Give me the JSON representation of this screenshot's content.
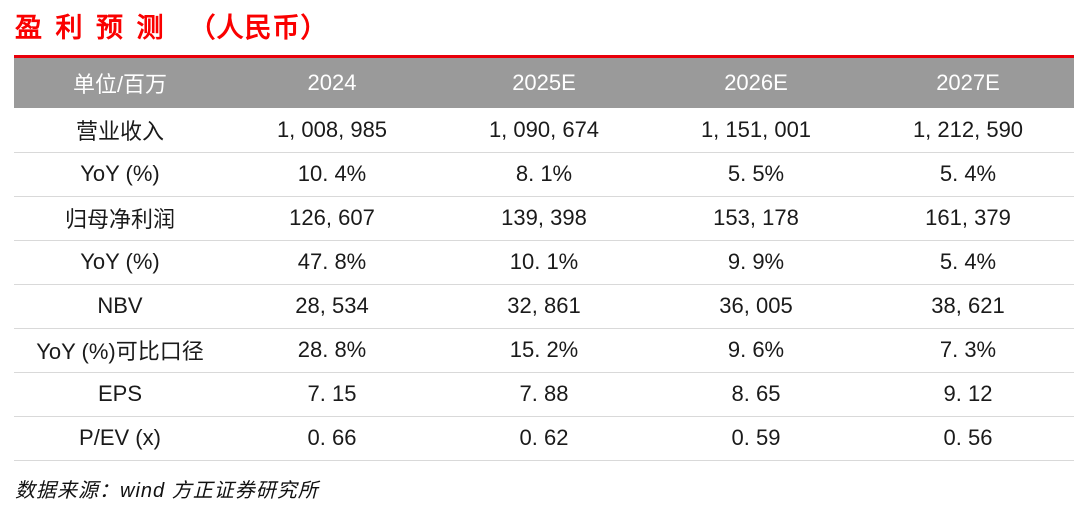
{
  "title": {
    "main": "盈 利 预 测",
    "unit": "（人民币）"
  },
  "table": {
    "header": {
      "label": "单位/百万",
      "columns": [
        "2024",
        "2025E",
        "2026E",
        "2027E"
      ]
    },
    "rows": [
      {
        "label": "营业收入",
        "values": [
          "1, 008, 985",
          "1, 090, 674",
          "1, 151, 001",
          "1, 212, 590"
        ]
      },
      {
        "label": "YoY (%)",
        "values": [
          "10. 4%",
          "8. 1%",
          "5. 5%",
          "5. 4%"
        ]
      },
      {
        "label": "归母净利润",
        "values": [
          "126, 607",
          "139, 398",
          "153, 178",
          "161, 379"
        ]
      },
      {
        "label": "YoY (%)",
        "values": [
          "47. 8%",
          "10. 1%",
          "9. 9%",
          "5. 4%"
        ]
      },
      {
        "label": "NBV",
        "values": [
          "28, 534",
          "32, 861",
          "36, 005",
          "38, 621"
        ]
      },
      {
        "label": "YoY (%)可比口径",
        "values": [
          "28. 8%",
          "15. 2%",
          "9. 6%",
          "7. 3%"
        ]
      },
      {
        "label": "EPS",
        "values": [
          "7. 15",
          "7. 88",
          "8. 65",
          "9. 12"
        ]
      },
      {
        "label": "P/EV (x)",
        "values": [
          "0. 66",
          "0. 62",
          "0. 59",
          "0. 56"
        ]
      }
    ]
  },
  "footer": {
    "source": "数据来源：wind 方正证券研究所"
  },
  "colors": {
    "accent_red": "#fa0000",
    "rule_red": "#e8000a",
    "header_bg": "#9a9a9a",
    "row_border": "#d9d9d9"
  }
}
